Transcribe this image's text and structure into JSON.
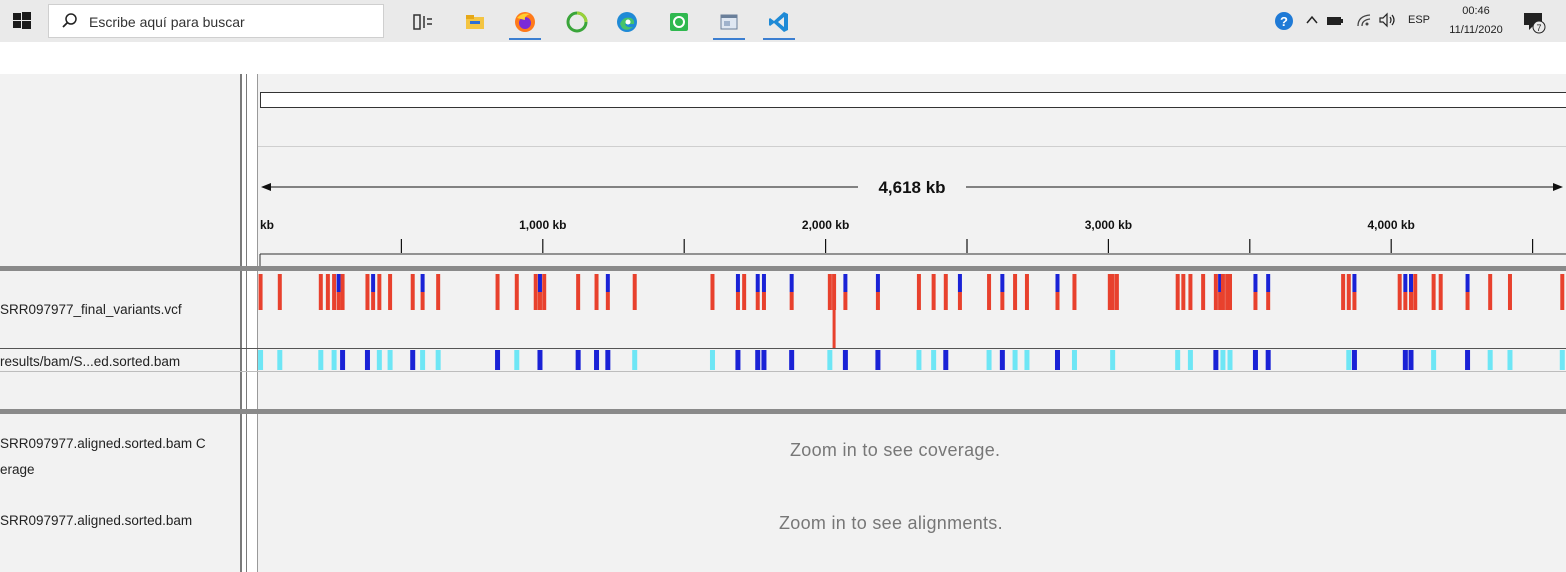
{
  "taskbar": {
    "search_placeholder": "Escribe aquí para buscar",
    "apps": [
      {
        "name": "task-view-icon",
        "active": false
      },
      {
        "name": "file-explorer-icon",
        "active": false
      },
      {
        "name": "firefox-icon",
        "active": true
      },
      {
        "name": "circle-app-icon",
        "active": false
      },
      {
        "name": "edge-icon",
        "active": false
      },
      {
        "name": "green-app-icon",
        "active": false
      },
      {
        "name": "window-app-icon",
        "active": true
      },
      {
        "name": "vscode-icon",
        "active": true
      }
    ],
    "language": "ESP",
    "time": "00:46",
    "date": "11/11/2020",
    "notification_count": "7"
  },
  "ruler": {
    "span_label": "4,618 kb",
    "tick_labels": [
      "kb",
      "1,000 kb",
      "2,000 kb",
      "3,000 kb",
      "4,000 kb"
    ],
    "total_kb": 4618
  },
  "tracks": {
    "vcf_label": "SRR097977_final_variants.vcf",
    "bam_summary_label": "results/bam/S...ed.sorted.bam",
    "coverage_label_line1": "SRR097977.aligned.sorted.bam C",
    "coverage_label_line2": "erage",
    "alignment_label": "SRR097977.aligned.sorted.bam"
  },
  "messages": {
    "coverage": "Zoom in to see coverage.",
    "alignments": "Zoom in to see alignments."
  },
  "colors": {
    "variant_red": "#e8412d",
    "variant_blue": "#1a22d6",
    "genotype_cyan": "#6ee6f5",
    "genotype_blue": "#1a22d6"
  },
  "variants_kb": [
    {
      "kb": 2,
      "type": "red"
    },
    {
      "kb": 70,
      "type": "red"
    },
    {
      "kb": 215,
      "type": "red"
    },
    {
      "kb": 240,
      "type": "red"
    },
    {
      "kb": 262,
      "type": "red"
    },
    {
      "kb": 278,
      "type": "blue"
    },
    {
      "kb": 292,
      "type": "red"
    },
    {
      "kb": 380,
      "type": "red"
    },
    {
      "kb": 400,
      "type": "blue"
    },
    {
      "kb": 422,
      "type": "red"
    },
    {
      "kb": 460,
      "type": "red"
    },
    {
      "kb": 540,
      "type": "red"
    },
    {
      "kb": 575,
      "type": "blue"
    },
    {
      "kb": 630,
      "type": "red"
    },
    {
      "kb": 840,
      "type": "red"
    },
    {
      "kb": 908,
      "type": "red"
    },
    {
      "kb": 975,
      "type": "red"
    },
    {
      "kb": 990,
      "type": "blue"
    },
    {
      "kb": 1005,
      "type": "red"
    },
    {
      "kb": 1125,
      "type": "red"
    },
    {
      "kb": 1190,
      "type": "red"
    },
    {
      "kb": 1230,
      "type": "blue"
    },
    {
      "kb": 1325,
      "type": "red"
    },
    {
      "kb": 1600,
      "type": "red"
    },
    {
      "kb": 1690,
      "type": "blue"
    },
    {
      "kb": 1712,
      "type": "red"
    },
    {
      "kb": 1760,
      "type": "blue"
    },
    {
      "kb": 1782,
      "type": "blue"
    },
    {
      "kb": 1880,
      "type": "blue"
    },
    {
      "kb": 2015,
      "type": "red"
    },
    {
      "kb": 2030,
      "type": "red"
    },
    {
      "kb": 2070,
      "type": "blue"
    },
    {
      "kb": 2185,
      "type": "blue"
    },
    {
      "kb": 2330,
      "type": "red"
    },
    {
      "kb": 2382,
      "type": "red"
    },
    {
      "kb": 2425,
      "type": "red"
    },
    {
      "kb": 2475,
      "type": "blue"
    },
    {
      "kb": 2578,
      "type": "red"
    },
    {
      "kb": 2625,
      "type": "blue"
    },
    {
      "kb": 2670,
      "type": "red"
    },
    {
      "kb": 2712,
      "type": "red"
    },
    {
      "kb": 2820,
      "type": "blue"
    },
    {
      "kb": 2880,
      "type": "red"
    },
    {
      "kb": 3005,
      "type": "red"
    },
    {
      "kb": 3015,
      "type": "red"
    },
    {
      "kb": 3030,
      "type": "red"
    },
    {
      "kb": 3245,
      "type": "red"
    },
    {
      "kb": 3265,
      "type": "red"
    },
    {
      "kb": 3290,
      "type": "red"
    },
    {
      "kb": 3335,
      "type": "red"
    },
    {
      "kb": 3380,
      "type": "red"
    },
    {
      "kb": 3395,
      "type": "blue"
    },
    {
      "kb": 3405,
      "type": "red"
    },
    {
      "kb": 3420,
      "type": "red"
    },
    {
      "kb": 3430,
      "type": "red"
    },
    {
      "kb": 3520,
      "type": "blue"
    },
    {
      "kb": 3565,
      "type": "blue"
    },
    {
      "kb": 3830,
      "type": "red"
    },
    {
      "kb": 3850,
      "type": "red"
    },
    {
      "kb": 3870,
      "type": "blue"
    },
    {
      "kb": 4030,
      "type": "red"
    },
    {
      "kb": 4050,
      "type": "blue"
    },
    {
      "kb": 4070,
      "type": "blue"
    },
    {
      "kb": 4085,
      "type": "red"
    },
    {
      "kb": 4150,
      "type": "red"
    },
    {
      "kb": 4175,
      "type": "red"
    },
    {
      "kb": 4270,
      "type": "blue"
    },
    {
      "kb": 4350,
      "type": "red"
    },
    {
      "kb": 4420,
      "type": "red"
    },
    {
      "kb": 4605,
      "type": "red"
    }
  ],
  "genotypes_kb": [
    {
      "kb": 2,
      "type": "cyan"
    },
    {
      "kb": 70,
      "type": "cyan"
    },
    {
      "kb": 215,
      "type": "cyan"
    },
    {
      "kb": 262,
      "type": "cyan"
    },
    {
      "kb": 292,
      "type": "blue"
    },
    {
      "kb": 380,
      "type": "blue"
    },
    {
      "kb": 422,
      "type": "cyan"
    },
    {
      "kb": 460,
      "type": "cyan"
    },
    {
      "kb": 540,
      "type": "blue"
    },
    {
      "kb": 575,
      "type": "cyan"
    },
    {
      "kb": 630,
      "type": "cyan"
    },
    {
      "kb": 840,
      "type": "blue"
    },
    {
      "kb": 908,
      "type": "cyan"
    },
    {
      "kb": 990,
      "type": "blue"
    },
    {
      "kb": 1125,
      "type": "blue"
    },
    {
      "kb": 1190,
      "type": "blue"
    },
    {
      "kb": 1230,
      "type": "blue"
    },
    {
      "kb": 1325,
      "type": "cyan"
    },
    {
      "kb": 1600,
      "type": "cyan"
    },
    {
      "kb": 1690,
      "type": "blue"
    },
    {
      "kb": 1760,
      "type": "blue"
    },
    {
      "kb": 1782,
      "type": "blue"
    },
    {
      "kb": 1880,
      "type": "blue"
    },
    {
      "kb": 2015,
      "type": "cyan"
    },
    {
      "kb": 2070,
      "type": "blue"
    },
    {
      "kb": 2185,
      "type": "blue"
    },
    {
      "kb": 2330,
      "type": "cyan"
    },
    {
      "kb": 2382,
      "type": "cyan"
    },
    {
      "kb": 2425,
      "type": "blue"
    },
    {
      "kb": 2578,
      "type": "cyan"
    },
    {
      "kb": 2625,
      "type": "blue"
    },
    {
      "kb": 2670,
      "type": "cyan"
    },
    {
      "kb": 2712,
      "type": "cyan"
    },
    {
      "kb": 2820,
      "type": "blue"
    },
    {
      "kb": 2880,
      "type": "cyan"
    },
    {
      "kb": 3015,
      "type": "cyan"
    },
    {
      "kb": 3245,
      "type": "cyan"
    },
    {
      "kb": 3290,
      "type": "cyan"
    },
    {
      "kb": 3380,
      "type": "blue"
    },
    {
      "kb": 3405,
      "type": "cyan"
    },
    {
      "kb": 3430,
      "type": "cyan"
    },
    {
      "kb": 3520,
      "type": "blue"
    },
    {
      "kb": 3565,
      "type": "blue"
    },
    {
      "kb": 3850,
      "type": "cyan"
    },
    {
      "kb": 3870,
      "type": "blue"
    },
    {
      "kb": 4050,
      "type": "blue"
    },
    {
      "kb": 4070,
      "type": "blue"
    },
    {
      "kb": 4150,
      "type": "cyan"
    },
    {
      "kb": 4270,
      "type": "blue"
    },
    {
      "kb": 4350,
      "type": "cyan"
    },
    {
      "kb": 4420,
      "type": "cyan"
    },
    {
      "kb": 4605,
      "type": "cyan"
    }
  ]
}
